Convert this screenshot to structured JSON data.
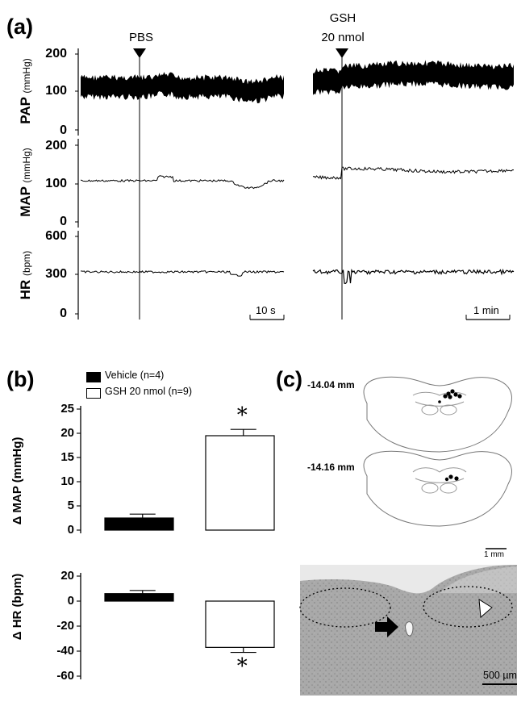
{
  "panels": {
    "a": "(a)",
    "b": "(b)",
    "c": "(c)"
  },
  "panel_a": {
    "events": {
      "pbs": "PBS",
      "gsh_line1": "GSH",
      "gsh_line2": "20 nmol"
    },
    "traces": [
      {
        "label": "PAP",
        "unit": "(mmHg)",
        "ticks": [
          "200",
          "100",
          "0"
        ]
      },
      {
        "label": "MAP",
        "unit": "(mmHg)",
        "ticks": [
          "200",
          "100",
          "0"
        ]
      },
      {
        "label": "HR",
        "unit": "(bpm)",
        "ticks": [
          "600",
          "300",
          "0"
        ]
      }
    ],
    "scalebars": {
      "left": "10 s",
      "right": "1 min"
    }
  },
  "chart_data": [
    {
      "type": "bar",
      "panel": "b-top",
      "ylabel": "Δ MAP (mmHg)",
      "ylim": [
        0,
        25
      ],
      "yticks": [
        "25",
        "20",
        "15",
        "10",
        "5",
        "0"
      ],
      "categories": [
        "Vehicle (n=4)",
        "GSH 20 nmol (n=9)"
      ],
      "values": [
        2.5,
        19.5
      ],
      "errors": [
        0.8,
        1.3
      ],
      "significance": [
        "",
        "*"
      ],
      "colors": [
        "#000000",
        "#ffffff"
      ]
    },
    {
      "type": "bar",
      "panel": "b-bottom",
      "ylabel": "Δ HR (bpm)",
      "ylim": [
        -60,
        20
      ],
      "yticks": [
        "20",
        "0",
        "-20",
        "-40",
        "-60"
      ],
      "categories": [
        "Vehicle (n=4)",
        "GSH 20 nmol (n=9)"
      ],
      "values": [
        6,
        -37
      ],
      "errors": [
        2.5,
        4
      ],
      "significance": [
        "",
        "*"
      ],
      "colors": [
        "#000000",
        "#ffffff"
      ]
    }
  ],
  "legend": {
    "vehicle": "Vehicle (n=4)",
    "gsh": "GSH 20 nmol (n=9)"
  },
  "panel_c": {
    "section1": "-14.04 mm",
    "section2": "-14.16 mm",
    "scale_atlas": "1 mm",
    "scale_histo": "500 µm"
  }
}
